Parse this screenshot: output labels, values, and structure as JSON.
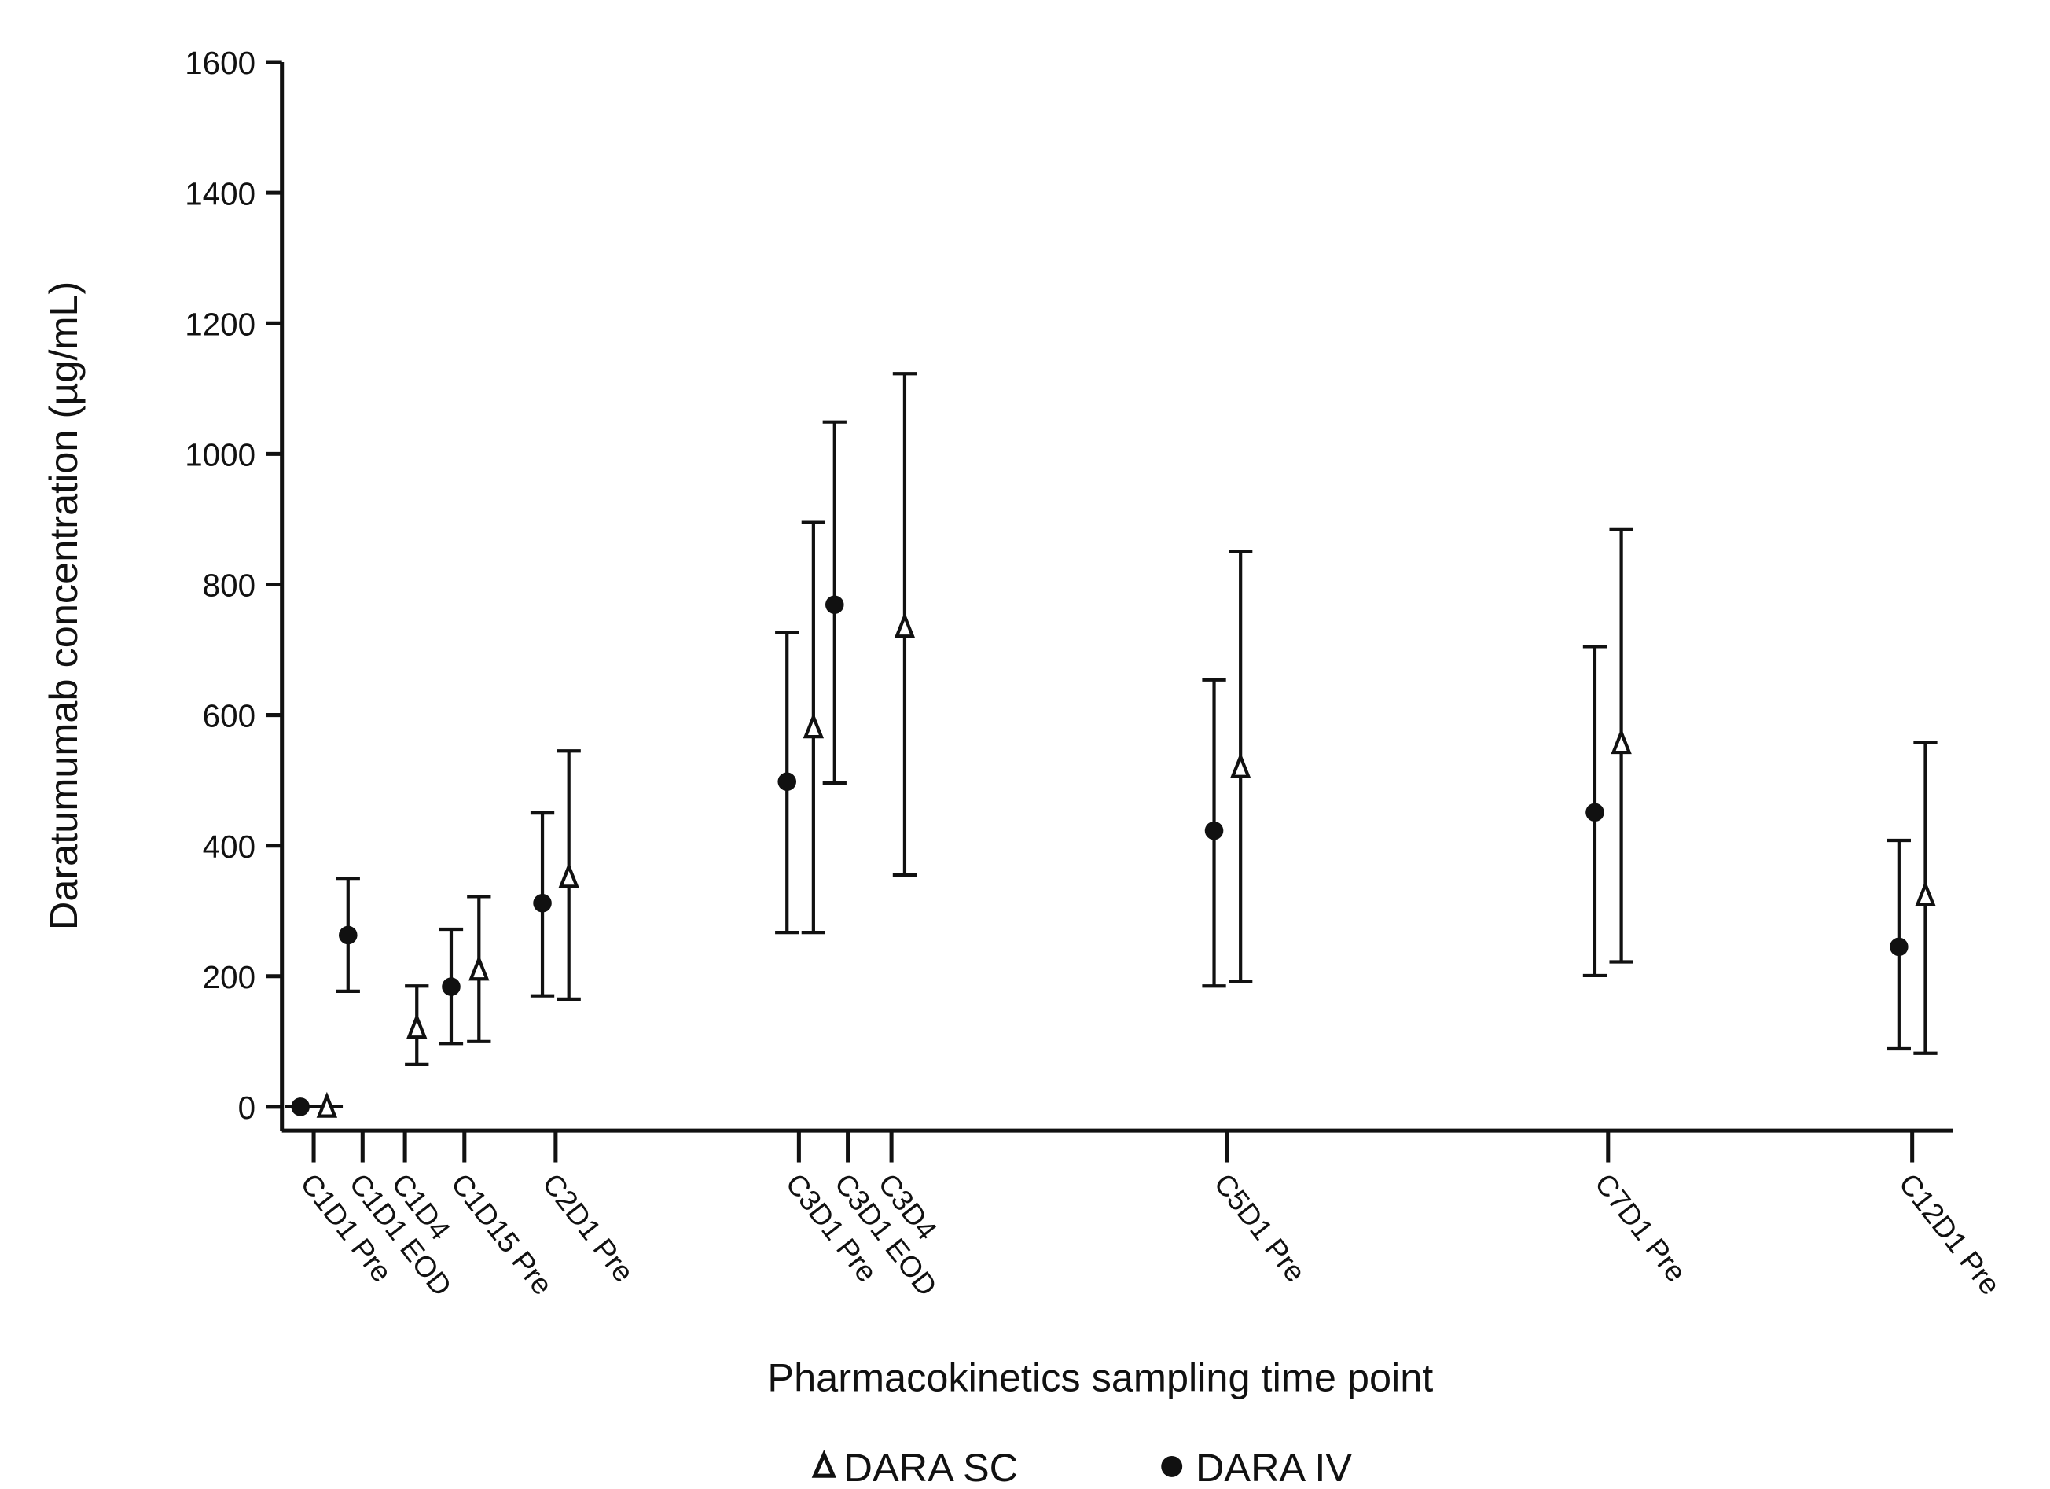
{
  "chart_data": {
    "type": "scatter",
    "title": "",
    "xlabel": "Pharmacokinetics sampling time point",
    "ylabel": "Daratumumab concentration (µg/mL)",
    "ylim": [
      0,
      1600
    ],
    "yticks": [
      0,
      200,
      400,
      600,
      800,
      1000,
      1200,
      1400,
      1600
    ],
    "grid": false,
    "legend_position": "bottom-center",
    "categories": [
      "C1D1 Pre",
      "C1D1 EOD",
      "C1D4",
      "C1D15 Pre",
      "C2D1 Pre",
      "C3D1 Pre",
      "C3D1 EOD",
      "C3D4",
      "C5D1 Pre",
      "C7D1 Pre",
      "C12D1 Pre"
    ],
    "series": [
      {
        "name": "DARA SC",
        "marker": "open-triangle",
        "points": [
          {
            "category": "C1D1 Pre",
            "y": 0,
            "low": 0,
            "high": 0
          },
          {
            "category": "C1D4",
            "y": 121,
            "low": 65,
            "high": 185
          },
          {
            "category": "C1D15 Pre",
            "y": 210,
            "low": 100,
            "high": 322
          },
          {
            "category": "C2D1 Pre",
            "y": 352,
            "low": 165,
            "high": 545
          },
          {
            "category": "C3D1 Pre",
            "y": 581,
            "low": 267,
            "high": 895
          },
          {
            "category": "C3D4",
            "y": 735,
            "low": 355,
            "high": 1123
          },
          {
            "category": "C5D1 Pre",
            "y": 520,
            "low": 192,
            "high": 850
          },
          {
            "category": "C7D1 Pre",
            "y": 557,
            "low": 222,
            "high": 885
          },
          {
            "category": "C12D1 Pre",
            "y": 324,
            "low": 82,
            "high": 558
          }
        ]
      },
      {
        "name": "DARA IV",
        "marker": "filled-circle",
        "points": [
          {
            "category": "C1D1 Pre",
            "y": 0,
            "low": 0,
            "high": 0
          },
          {
            "category": "C1D1 EOD",
            "y": 263,
            "low": 177,
            "high": 350
          },
          {
            "category": "C1D15 Pre",
            "y": 184,
            "low": 97,
            "high": 272
          },
          {
            "category": "C2D1 Pre",
            "y": 312,
            "low": 170,
            "high": 450
          },
          {
            "category": "C3D1 Pre",
            "y": 498,
            "low": 267,
            "high": 727
          },
          {
            "category": "C3D1 EOD",
            "y": 769,
            "low": 496,
            "high": 1049
          },
          {
            "category": "C5D1 Pre",
            "y": 423,
            "low": 185,
            "high": 654
          },
          {
            "category": "C7D1 Pre",
            "y": 451,
            "low": 201,
            "high": 705
          },
          {
            "category": "C12D1 Pre",
            "y": 245,
            "low": 89,
            "high": 408
          }
        ]
      }
    ]
  }
}
